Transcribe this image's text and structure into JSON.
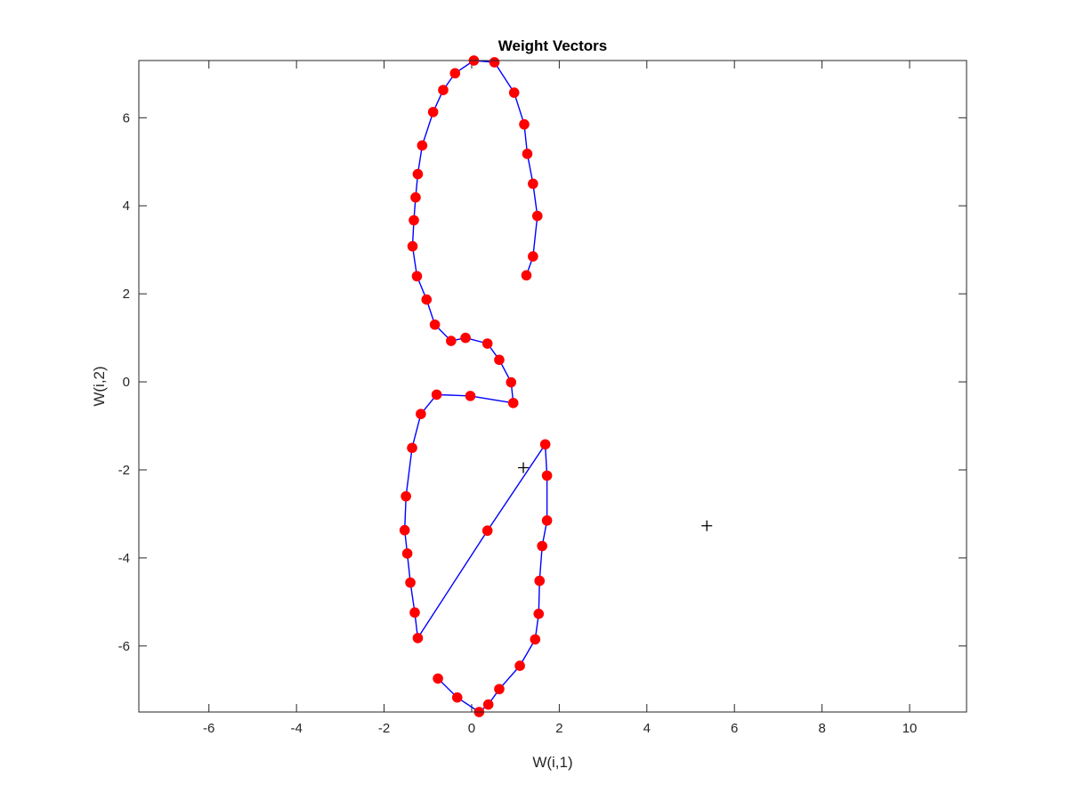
{
  "chart_data": {
    "type": "line",
    "title": "Weight Vectors",
    "xlabel": "W(i,1)",
    "ylabel": "W(i,2)",
    "xlim": [
      -7.6,
      11.3
    ],
    "ylim": [
      -7.5,
      7.3
    ],
    "xticks": [
      -6,
      -4,
      -2,
      0,
      2,
      4,
      6,
      8,
      10
    ],
    "yticks": [
      -6,
      -4,
      -2,
      0,
      2,
      4,
      6
    ],
    "grid": false,
    "series": [
      {
        "marker": "filled-circle",
        "line_color": "#0000ff",
        "marker_color": "#ff0000",
        "points": [
          [
            1.25,
            2.42
          ],
          [
            1.4,
            2.85
          ],
          [
            1.5,
            3.77
          ],
          [
            1.4,
            4.5
          ],
          [
            1.27,
            5.18
          ],
          [
            1.2,
            5.85
          ],
          [
            0.97,
            6.57
          ],
          [
            0.52,
            7.26
          ],
          [
            0.05,
            7.3
          ],
          [
            -0.38,
            7.01
          ],
          [
            -0.65,
            6.63
          ],
          [
            -0.88,
            6.13
          ],
          [
            -1.13,
            5.37
          ],
          [
            -1.23,
            4.72
          ],
          [
            -1.28,
            4.19
          ],
          [
            -1.32,
            3.67
          ],
          [
            -1.35,
            3.08
          ],
          [
            -1.25,
            2.4
          ],
          [
            -1.03,
            1.87
          ],
          [
            -0.84,
            1.3
          ],
          [
            -0.47,
            0.93
          ],
          [
            -0.14,
            1.0
          ],
          [
            0.36,
            0.87
          ],
          [
            0.63,
            0.5
          ],
          [
            0.9,
            -0.01
          ],
          [
            0.95,
            -0.48
          ],
          [
            -0.03,
            -0.32
          ],
          [
            -0.8,
            -0.29
          ],
          [
            -1.16,
            -0.73
          ],
          [
            -1.36,
            -1.5
          ],
          [
            -1.5,
            -2.6
          ],
          [
            -1.53,
            -3.37
          ],
          [
            -1.47,
            -3.9
          ],
          [
            -1.4,
            -4.56
          ],
          [
            -1.3,
            -5.24
          ],
          [
            -1.23,
            -5.82
          ],
          [
            0.36,
            -3.38
          ],
          [
            1.68,
            -1.42
          ],
          [
            1.72,
            -2.13
          ],
          [
            1.72,
            -3.15
          ],
          [
            1.61,
            -3.73
          ],
          [
            1.55,
            -4.52
          ],
          [
            1.53,
            -5.27
          ],
          [
            1.45,
            -5.85
          ],
          [
            1.1,
            -6.45
          ],
          [
            0.63,
            -6.98
          ],
          [
            0.38,
            -7.33
          ],
          [
            0.17,
            -7.5
          ],
          [
            -0.33,
            -7.17
          ],
          [
            -0.77,
            -6.74
          ]
        ]
      },
      {
        "marker": "plus",
        "line_color": "none",
        "marker_color": "#000000",
        "points": [
          [
            1.18,
            -1.95
          ],
          [
            5.37,
            -3.27
          ]
        ]
      }
    ]
  }
}
